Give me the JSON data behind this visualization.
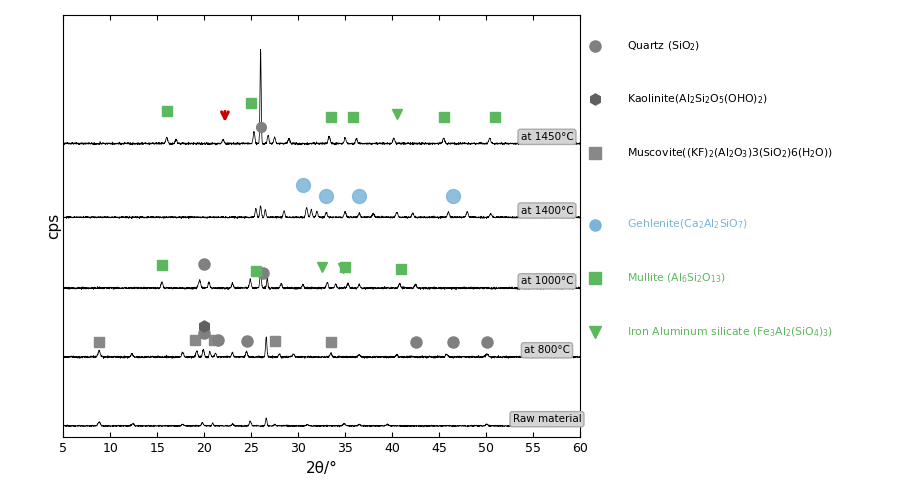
{
  "xlabel": "2θ/°",
  "ylabel": "cps",
  "xlim": [
    5,
    60
  ],
  "x_ticks": [
    5,
    10,
    15,
    20,
    25,
    30,
    35,
    40,
    45,
    50,
    55,
    60
  ],
  "trace_labels": [
    "Raw material",
    "at 800°C",
    "at 1000°C",
    "at 1400°C",
    "at 1450°C"
  ],
  "quartz_color": "#808080",
  "kaolinite_color": "#606060",
  "muscovite_color": "#888888",
  "gehlenite_color": "#7ab4d8",
  "mullite_color": "#5cb85c",
  "iron_al_color": "#5cb85c",
  "red_arrow_color": "#cc0000",
  "label_box_facecolor": "#d4d4d4",
  "label_box_edgecolor": "#aaaaaa"
}
